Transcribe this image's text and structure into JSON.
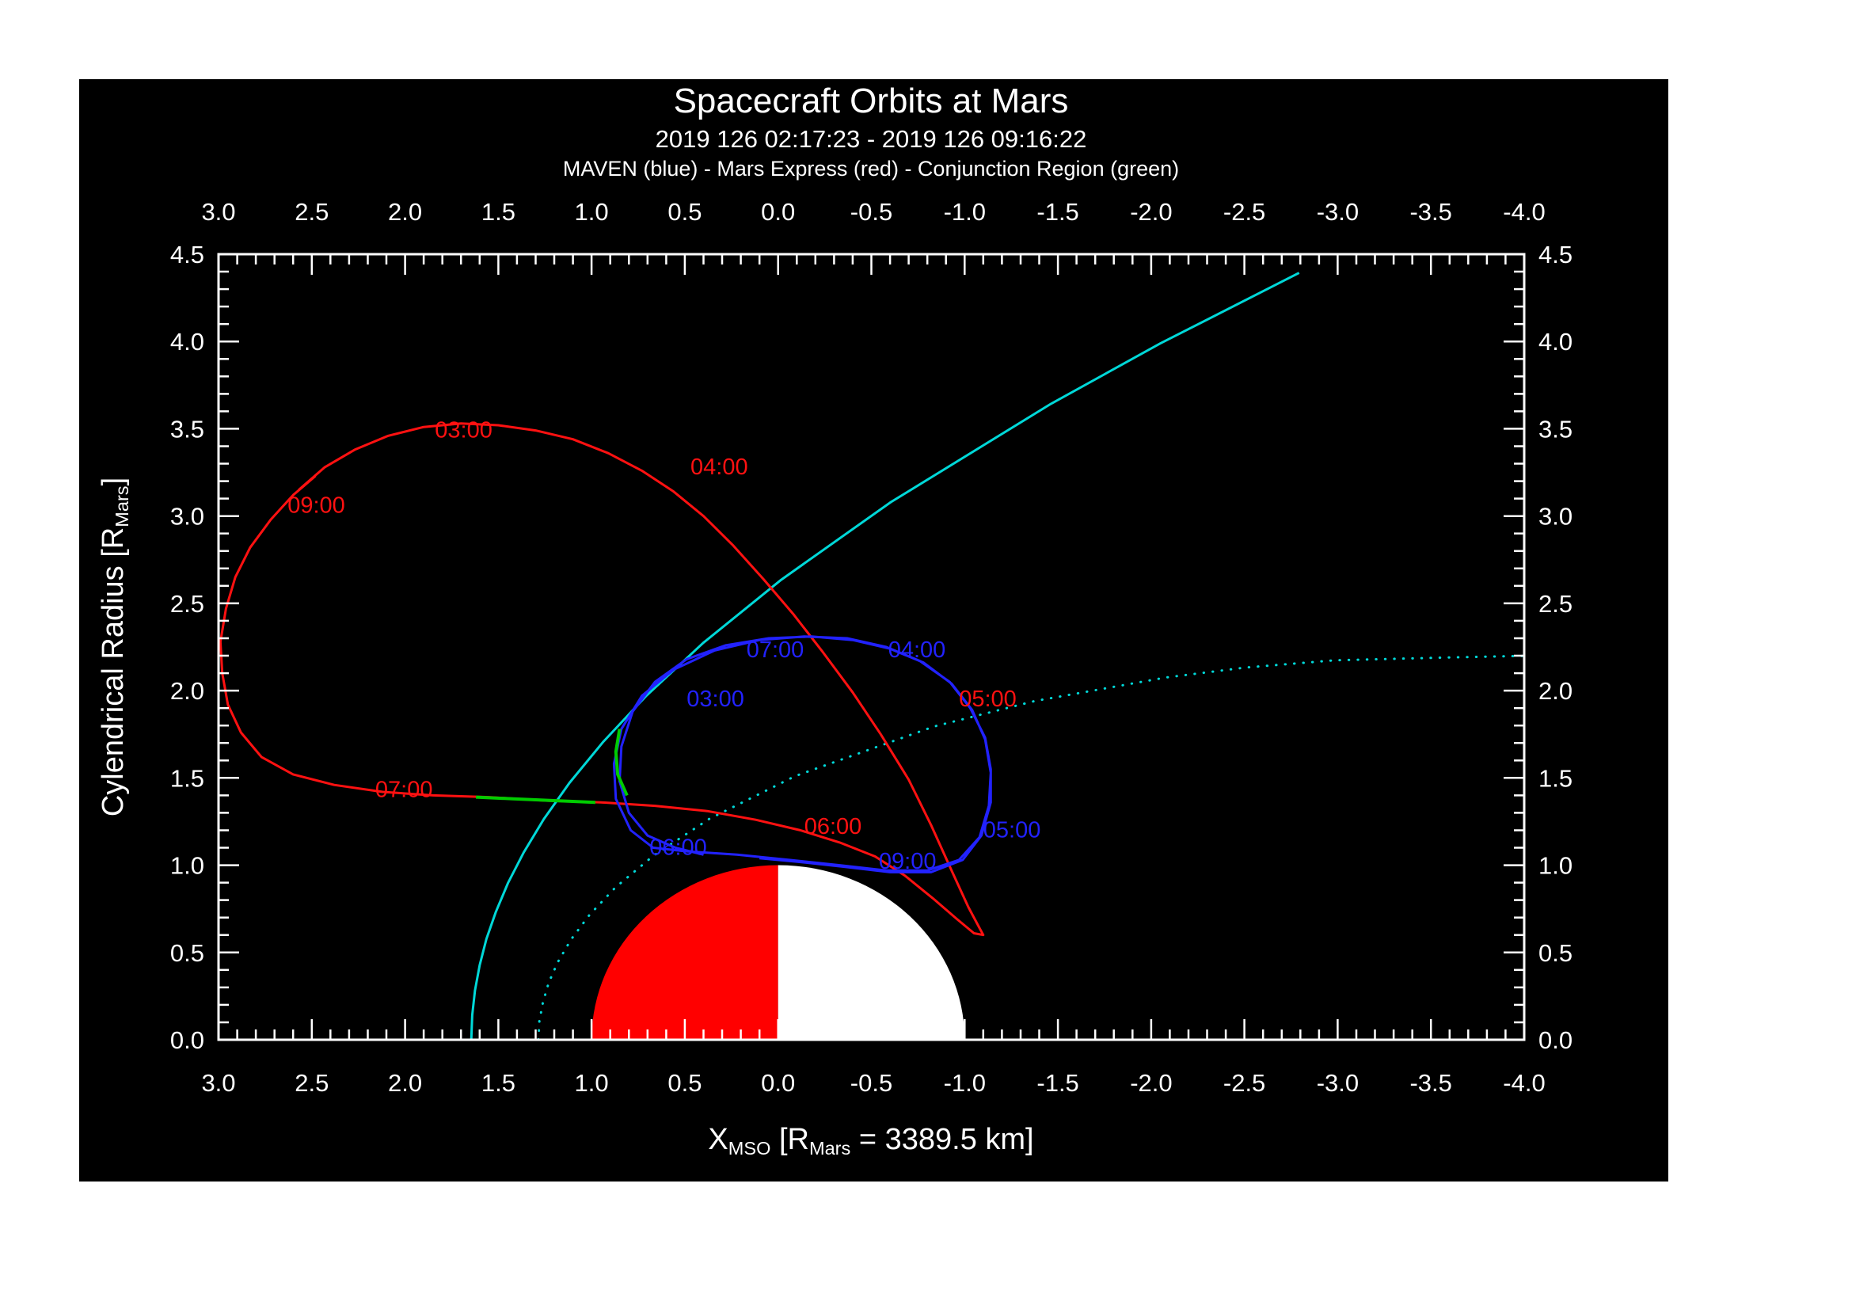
{
  "titles": {
    "main": "Spacecraft Orbits at Mars",
    "subtitle": "2019 126 02:17:23 - 2019 126 09:16:22",
    "legend": "MAVEN (blue) - Mars Express (red) - Conjunction Region (green)"
  },
  "axes": {
    "x_title": {
      "base": "X",
      "sub1": "MSO",
      "mid": " [R",
      "sub2": "Mars",
      "end": " = 3389.5 km]"
    },
    "y_title": {
      "base": "Cylendrical Radius [R",
      "sub": "Mars",
      "end": "]"
    },
    "x_tick_labels": [
      "3.0",
      "2.5",
      "2.0",
      "1.5",
      "1.0",
      "0.5",
      "0.0",
      "-0.5",
      "-1.0",
      "-1.5",
      "-2.0",
      "-2.5",
      "-3.0",
      "-3.5",
      "-4.0"
    ],
    "y_tick_labels": [
      "0.0",
      "0.5",
      "1.0",
      "1.5",
      "2.0",
      "2.5",
      "3.0",
      "3.5",
      "4.0",
      "4.5"
    ]
  },
  "colors": {
    "background": "#000000",
    "frame": "#ffffff",
    "text": "#ffffff",
    "maven_blue": "#2222ff",
    "mex_red": "#ff1111",
    "conjunction_green": "#00cc00",
    "boundary_cyan": "#00d8d8",
    "mars_day": "#ff0000",
    "mars_night": "#ffffff"
  },
  "chart_data": {
    "type": "line",
    "title": "Spacecraft Orbits at Mars",
    "xlabel": "X_MSO [R_Mars = 3389.5 km]",
    "ylabel": "Cylendrical Radius [R_Mars]",
    "x_range": [
      3.0,
      -4.0
    ],
    "y_range": [
      0.0,
      4.5
    ],
    "grid": false,
    "mars": {
      "radius": 1.0,
      "center": [
        0,
        0
      ],
      "dayside_x_positive_color": "#ff0000",
      "nightside_x_negative_color": "#ffffff"
    },
    "series": [
      {
        "name": "Mars Express",
        "color": "#ff1111",
        "points": [
          [
            2.57,
            3.15
          ],
          [
            2.43,
            3.28
          ],
          [
            2.27,
            3.38
          ],
          [
            2.09,
            3.46
          ],
          [
            1.9,
            3.51
          ],
          [
            1.7,
            3.53
          ],
          [
            1.5,
            3.52
          ],
          [
            1.3,
            3.49
          ],
          [
            1.1,
            3.44
          ],
          [
            0.91,
            3.36
          ],
          [
            0.73,
            3.26
          ],
          [
            0.56,
            3.14
          ],
          [
            0.4,
            3.0
          ],
          [
            0.24,
            2.83
          ],
          [
            0.08,
            2.64
          ],
          [
            -0.08,
            2.44
          ],
          [
            -0.24,
            2.22
          ],
          [
            -0.4,
            1.99
          ],
          [
            -0.55,
            1.75
          ],
          [
            -0.7,
            1.49
          ],
          [
            -0.82,
            1.23
          ],
          [
            -0.93,
            0.97
          ],
          [
            -1.02,
            0.76
          ],
          [
            -1.08,
            0.64
          ],
          [
            -1.1,
            0.6
          ],
          [
            -1.05,
            0.61
          ],
          [
            -0.96,
            0.69
          ],
          [
            -0.83,
            0.81
          ],
          [
            -0.68,
            0.94
          ],
          [
            -0.52,
            1.05
          ],
          [
            -0.33,
            1.13
          ],
          [
            -0.12,
            1.2
          ],
          [
            0.12,
            1.26
          ],
          [
            0.38,
            1.31
          ],
          [
            0.66,
            1.34
          ],
          [
            0.95,
            1.36
          ],
          [
            1.25,
            1.37
          ],
          [
            1.55,
            1.39
          ],
          [
            1.85,
            1.4
          ],
          [
            2.12,
            1.42
          ],
          [
            2.38,
            1.46
          ],
          [
            2.6,
            1.52
          ],
          [
            2.77,
            1.62
          ],
          [
            2.88,
            1.76
          ],
          [
            2.95,
            1.92
          ],
          [
            2.98,
            2.1
          ],
          [
            2.99,
            2.28
          ],
          [
            2.96,
            2.47
          ],
          [
            2.91,
            2.65
          ],
          [
            2.83,
            2.82
          ],
          [
            2.72,
            2.98
          ],
          [
            2.6,
            3.12
          ],
          [
            2.48,
            3.23
          ]
        ],
        "markers": [
          [
            2.52,
            3.2
          ],
          [
            2.38,
            3.31
          ],
          [
            2.22,
            3.41
          ],
          [
            2.05,
            3.47
          ],
          [
            1.87,
            3.51
          ],
          [
            1.68,
            3.53
          ],
          [
            1.49,
            3.52
          ],
          [
            1.3,
            3.49
          ],
          [
            1.11,
            3.44
          ],
          [
            0.93,
            3.37
          ],
          [
            0.75,
            3.27
          ],
          [
            0.58,
            3.16
          ],
          [
            0.42,
            3.02
          ],
          [
            0.26,
            2.85
          ],
          [
            0.1,
            2.67
          ],
          [
            -0.06,
            2.47
          ],
          [
            -0.22,
            2.25
          ],
          [
            -0.38,
            2.02
          ],
          [
            -0.53,
            1.78
          ],
          [
            -0.67,
            1.52
          ],
          [
            -0.8,
            1.27
          ],
          [
            -0.91,
            1.01
          ],
          [
            -1.0,
            0.79
          ],
          [
            -1.08,
            0.65
          ],
          [
            -0.89,
            0.76
          ],
          [
            -0.71,
            0.92
          ],
          [
            -0.5,
            1.06
          ],
          [
            -0.27,
            1.15
          ],
          [
            -0.02,
            1.22
          ],
          [
            0.26,
            1.28
          ],
          [
            0.56,
            1.32
          ],
          [
            0.88,
            1.35
          ],
          [
            1.2,
            1.37
          ],
          [
            1.53,
            1.38
          ],
          [
            1.86,
            1.4
          ],
          [
            2.16,
            1.43
          ],
          [
            2.44,
            1.48
          ],
          [
            2.66,
            1.56
          ],
          [
            2.82,
            1.7
          ],
          [
            2.92,
            1.86
          ],
          [
            2.97,
            2.04
          ],
          [
            2.99,
            2.22
          ],
          [
            2.97,
            2.41
          ],
          [
            2.92,
            2.6
          ],
          [
            2.85,
            2.78
          ],
          [
            2.75,
            2.94
          ],
          [
            2.63,
            3.09
          ],
          [
            2.49,
            3.22
          ]
        ],
        "time_labels": [
          {
            "text": "03:00",
            "x": 1.84,
            "y": 3.45
          },
          {
            "text": "04:00",
            "x": 0.47,
            "y": 3.24
          },
          {
            "text": "05:00",
            "x": -0.97,
            "y": 1.91
          },
          {
            "text": "06:00",
            "x": -0.14,
            "y": 1.18
          },
          {
            "text": "07:00",
            "x": 2.16,
            "y": 1.39
          },
          {
            "text": "09:00",
            "x": 2.63,
            "y": 3.02
          }
        ]
      },
      {
        "name": "MAVEN",
        "color": "#2222ff",
        "points": [
          [
            0.4,
            1.06
          ],
          [
            0.55,
            1.1
          ],
          [
            0.7,
            1.17
          ],
          [
            0.8,
            1.3
          ],
          [
            0.85,
            1.48
          ],
          [
            0.84,
            1.68
          ],
          [
            0.78,
            1.88
          ],
          [
            0.66,
            2.05
          ],
          [
            0.49,
            2.18
          ],
          [
            0.28,
            2.26
          ],
          [
            0.05,
            2.3
          ],
          [
            -0.18,
            2.31
          ],
          [
            -0.4,
            2.29
          ],
          [
            -0.6,
            2.24
          ],
          [
            -0.78,
            2.16
          ],
          [
            -0.93,
            2.04
          ],
          [
            -1.04,
            1.89
          ],
          [
            -1.11,
            1.72
          ],
          [
            -1.14,
            1.53
          ],
          [
            -1.13,
            1.34
          ],
          [
            -1.08,
            1.16
          ],
          [
            -0.97,
            1.03
          ],
          [
            -0.8,
            0.97
          ],
          [
            -0.58,
            0.97
          ],
          [
            -0.33,
            1.0
          ],
          [
            -0.06,
            1.03
          ],
          [
            0.22,
            1.06
          ],
          [
            0.5,
            1.08
          ],
          [
            0.67,
            1.1
          ],
          [
            0.79,
            1.2
          ],
          [
            0.87,
            1.38
          ],
          [
            0.88,
            1.58
          ],
          [
            0.84,
            1.78
          ],
          [
            0.73,
            1.97
          ],
          [
            0.56,
            2.12
          ],
          [
            0.34,
            2.23
          ],
          [
            0.1,
            2.29
          ],
          [
            -0.14,
            2.31
          ],
          [
            -0.37,
            2.3
          ],
          [
            -0.58,
            2.25
          ],
          [
            -0.76,
            2.17
          ],
          [
            -0.92,
            2.05
          ],
          [
            -1.03,
            1.9
          ],
          [
            -1.11,
            1.73
          ],
          [
            -1.14,
            1.55
          ],
          [
            -1.14,
            1.36
          ],
          [
            -1.09,
            1.17
          ],
          [
            -0.99,
            1.03
          ],
          [
            -0.82,
            0.96
          ],
          [
            -0.6,
            0.96
          ],
          [
            -0.36,
            0.99
          ],
          [
            -0.1,
            1.02
          ],
          [
            0.1,
            1.04
          ]
        ],
        "markers": [
          [
            0.48,
            1.08
          ],
          [
            0.63,
            1.13
          ],
          [
            0.76,
            1.24
          ],
          [
            0.84,
            1.42
          ],
          [
            0.85,
            1.62
          ],
          [
            0.8,
            1.83
          ],
          [
            0.7,
            2.0
          ],
          [
            0.55,
            2.13
          ],
          [
            0.36,
            2.22
          ],
          [
            0.15,
            2.28
          ],
          [
            -0.07,
            2.31
          ],
          [
            -0.29,
            2.3
          ],
          [
            -0.5,
            2.27
          ],
          [
            -0.69,
            2.2
          ],
          [
            -0.86,
            2.1
          ],
          [
            -0.99,
            1.96
          ],
          [
            -1.08,
            1.8
          ],
          [
            -1.13,
            1.62
          ],
          [
            -1.14,
            1.43
          ],
          [
            -1.11,
            1.25
          ],
          [
            -1.03,
            1.09
          ],
          [
            -0.89,
            0.99
          ],
          [
            -0.69,
            0.96
          ],
          [
            -0.45,
            0.98
          ],
          [
            -0.19,
            1.01
          ],
          [
            0.08,
            1.04
          ],
          [
            0.36,
            1.07
          ],
          [
            0.6,
            1.09
          ],
          [
            0.74,
            1.16
          ],
          [
            0.83,
            1.32
          ],
          [
            0.88,
            1.5
          ],
          [
            0.86,
            1.7
          ],
          [
            0.78,
            1.9
          ],
          [
            0.64,
            2.06
          ],
          [
            0.45,
            2.18
          ],
          [
            0.23,
            2.26
          ],
          [
            0.0,
            2.3
          ],
          [
            -0.22,
            2.31
          ],
          [
            -0.44,
            2.28
          ],
          [
            -0.64,
            2.23
          ],
          [
            -0.81,
            2.13
          ],
          [
            -0.96,
            2.0
          ],
          [
            -1.06,
            1.85
          ],
          [
            -1.12,
            1.67
          ],
          [
            -1.14,
            1.48
          ],
          [
            -1.12,
            1.3
          ],
          [
            -1.05,
            1.12
          ],
          [
            -0.93,
            1.01
          ],
          [
            -0.75,
            0.96
          ],
          [
            -0.52,
            0.96
          ],
          [
            -0.27,
            1.0
          ],
          [
            0.0,
            1.03
          ]
        ],
        "time_labels": [
          {
            "text": "03:00",
            "x": 0.49,
            "y": 1.91
          },
          {
            "text": "04:00",
            "x": -0.59,
            "y": 2.19
          },
          {
            "text": "05:00",
            "x": -1.1,
            "y": 1.16
          },
          {
            "text": "06:00",
            "x": 0.69,
            "y": 1.06
          },
          {
            "text": "07:00",
            "x": 0.17,
            "y": 2.19
          },
          {
            "text": "09:00",
            "x": -0.54,
            "y": 0.98
          }
        ]
      }
    ],
    "conjunction_segments": [
      {
        "on": "Mars Express",
        "points": [
          [
            0.98,
            1.36
          ],
          [
            1.2,
            1.37
          ],
          [
            1.42,
            1.38
          ],
          [
            1.62,
            1.39
          ]
        ]
      },
      {
        "on": "MAVEN",
        "points": [
          [
            0.81,
            1.4
          ],
          [
            0.86,
            1.52
          ],
          [
            0.87,
            1.65
          ],
          [
            0.85,
            1.78
          ]
        ]
      }
    ],
    "boundaries": [
      {
        "name": "boundary-solid",
        "style": "solid",
        "color": "#00d8d8",
        "points": [
          [
            1.645,
            0.0
          ],
          [
            1.64,
            0.141
          ],
          [
            1.625,
            0.283
          ],
          [
            1.6,
            0.427
          ],
          [
            1.564,
            0.577
          ],
          [
            1.513,
            0.733
          ],
          [
            1.448,
            0.898
          ],
          [
            1.364,
            1.073
          ],
          [
            1.256,
            1.264
          ],
          [
            1.118,
            1.472
          ],
          [
            0.94,
            1.704
          ],
          [
            0.709,
            1.968
          ],
          [
            0.401,
            2.274
          ],
          [
            -0.017,
            2.635
          ],
          [
            -0.605,
            3.08
          ],
          [
            -1.463,
            3.643
          ],
          [
            -2.05,
            3.989
          ],
          [
            -2.793,
            4.393
          ]
        ]
      },
      {
        "name": "boundary-dotted",
        "style": "dotted",
        "color": "#00d8d8",
        "points": [
          [
            1.285,
            0.0
          ],
          [
            1.28,
            0.106
          ],
          [
            1.261,
            0.214
          ],
          [
            1.23,
            0.327
          ],
          [
            1.181,
            0.445
          ],
          [
            1.111,
            0.573
          ],
          [
            1.012,
            0.714
          ],
          [
            0.872,
            0.873
          ],
          [
            0.669,
            1.054
          ],
          [
            0.369,
            1.265
          ],
          [
            -0.093,
            1.511
          ],
          [
            -0.835,
            1.794
          ],
          [
            -1.375,
            1.94
          ],
          [
            -2.077,
            2.075
          ],
          [
            -2.504,
            2.132
          ],
          [
            -2.985,
            2.174
          ],
          [
            -3.6,
            2.19
          ],
          [
            -4.05,
            2.2
          ]
        ]
      }
    ]
  }
}
